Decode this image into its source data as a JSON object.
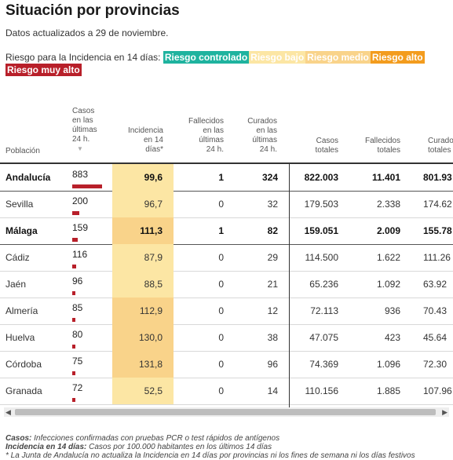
{
  "title": "Situación por provincias",
  "subtitle": "Datos actualizados a 29 de noviembre.",
  "legend": {
    "label": "Riesgo para la Incidencia en 14 días:",
    "items": [
      {
        "label": "Riesgo controlado",
        "color": "#1fb39f"
      },
      {
        "label": "Riesgo bajo",
        "color": "#fce6a4"
      },
      {
        "label": "Riesgo medio",
        "color": "#f9d38a"
      },
      {
        "label": "Riesgo alto",
        "color": "#f39c1e"
      },
      {
        "label": "Riesgo muy alto",
        "color": "#b8202a"
      }
    ]
  },
  "headers": {
    "poblacion": "Población",
    "casos24": [
      "Casos",
      "en las",
      "últimas",
      "24 h."
    ],
    "sort_glyph": "▼",
    "incidencia": [
      "Incidencia",
      "en 14",
      "días*"
    ],
    "fallecidos24": [
      "Fallecidos",
      "en las",
      "últimas",
      "24 h."
    ],
    "curados24": [
      "Curados",
      "en las",
      "últimas",
      "24 h."
    ],
    "casos_totales": [
      "Casos",
      "totales"
    ],
    "fallecidos_totales": [
      "Fallecidos",
      "totales"
    ],
    "curados_totales": [
      "Curados",
      "totales"
    ]
  },
  "rows": [
    {
      "name": "Andalucía",
      "casos24": "883",
      "incidencia": "99,6",
      "fallecidos24": "1",
      "curados24": "324",
      "casos_totales": "822.003",
      "fallecidos_totales": "11.401",
      "curados_totales": "801.93",
      "bold": true,
      "risk_color": "#fce6a4",
      "casos24_value": 883
    },
    {
      "name": "Sevilla",
      "casos24": "200",
      "incidencia": "96,7",
      "fallecidos24": "0",
      "curados24": "32",
      "casos_totales": "179.503",
      "fallecidos_totales": "2.338",
      "curados_totales": "174.62",
      "bold": false,
      "risk_color": "#fce6a4",
      "casos24_value": 200
    },
    {
      "name": "Málaga",
      "casos24": "159",
      "incidencia": "111,3",
      "fallecidos24": "1",
      "curados24": "82",
      "casos_totales": "159.051",
      "fallecidos_totales": "2.009",
      "curados_totales": "155.78",
      "bold": true,
      "risk_color": "#f9d38a",
      "casos24_value": 159
    },
    {
      "name": "Cádiz",
      "casos24": "116",
      "incidencia": "87,9",
      "fallecidos24": "0",
      "curados24": "29",
      "casos_totales": "114.500",
      "fallecidos_totales": "1.622",
      "curados_totales": "111.26",
      "bold": false,
      "risk_color": "#fce6a4",
      "casos24_value": 116
    },
    {
      "name": "Jaén",
      "casos24": "96",
      "incidencia": "88,5",
      "fallecidos24": "0",
      "curados24": "21",
      "casos_totales": "65.236",
      "fallecidos_totales": "1.092",
      "curados_totales": "63.92",
      "bold": false,
      "risk_color": "#fce6a4",
      "casos24_value": 96
    },
    {
      "name": "Almería",
      "casos24": "85",
      "incidencia": "112,9",
      "fallecidos24": "0",
      "curados24": "12",
      "casos_totales": "72.113",
      "fallecidos_totales": "936",
      "curados_totales": "70.43",
      "bold": false,
      "risk_color": "#f9d38a",
      "casos24_value": 85
    },
    {
      "name": "Huelva",
      "casos24": "80",
      "incidencia": "130,0",
      "fallecidos24": "0",
      "curados24": "38",
      "casos_totales": "47.075",
      "fallecidos_totales": "423",
      "curados_totales": "45.64",
      "bold": false,
      "risk_color": "#f9d38a",
      "casos24_value": 80
    },
    {
      "name": "Córdoba",
      "casos24": "75",
      "incidencia": "131,8",
      "fallecidos24": "0",
      "curados24": "96",
      "casos_totales": "74.369",
      "fallecidos_totales": "1.096",
      "curados_totales": "72.30",
      "bold": false,
      "risk_color": "#f9d38a",
      "casos24_value": 75
    },
    {
      "name": "Granada",
      "casos24": "72",
      "incidencia": "52,5",
      "fallecidos24": "0",
      "curados24": "14",
      "casos_totales": "110.156",
      "fallecidos_totales": "1.885",
      "curados_totales": "107.96",
      "bold": false,
      "risk_color": "#fce6a4",
      "casos24_value": 72
    }
  ],
  "scroll": {
    "left_arrow": "◀",
    "right_arrow": "▶"
  },
  "notes": {
    "casos_label": "Casos:",
    "casos_text": " Infecciones confirmadas con pruebas PCR o test rápidos de antígenos",
    "incidencia_label": "Incidencia en 14 días:",
    "incidencia_text": " Casos por 100.000 habitantes en los últimos 14 días",
    "footnote": "* La Junta de Andalucía no actualiza la Incidencia en 14 días por provincias ni los fines de semana ni los días festivos"
  }
}
